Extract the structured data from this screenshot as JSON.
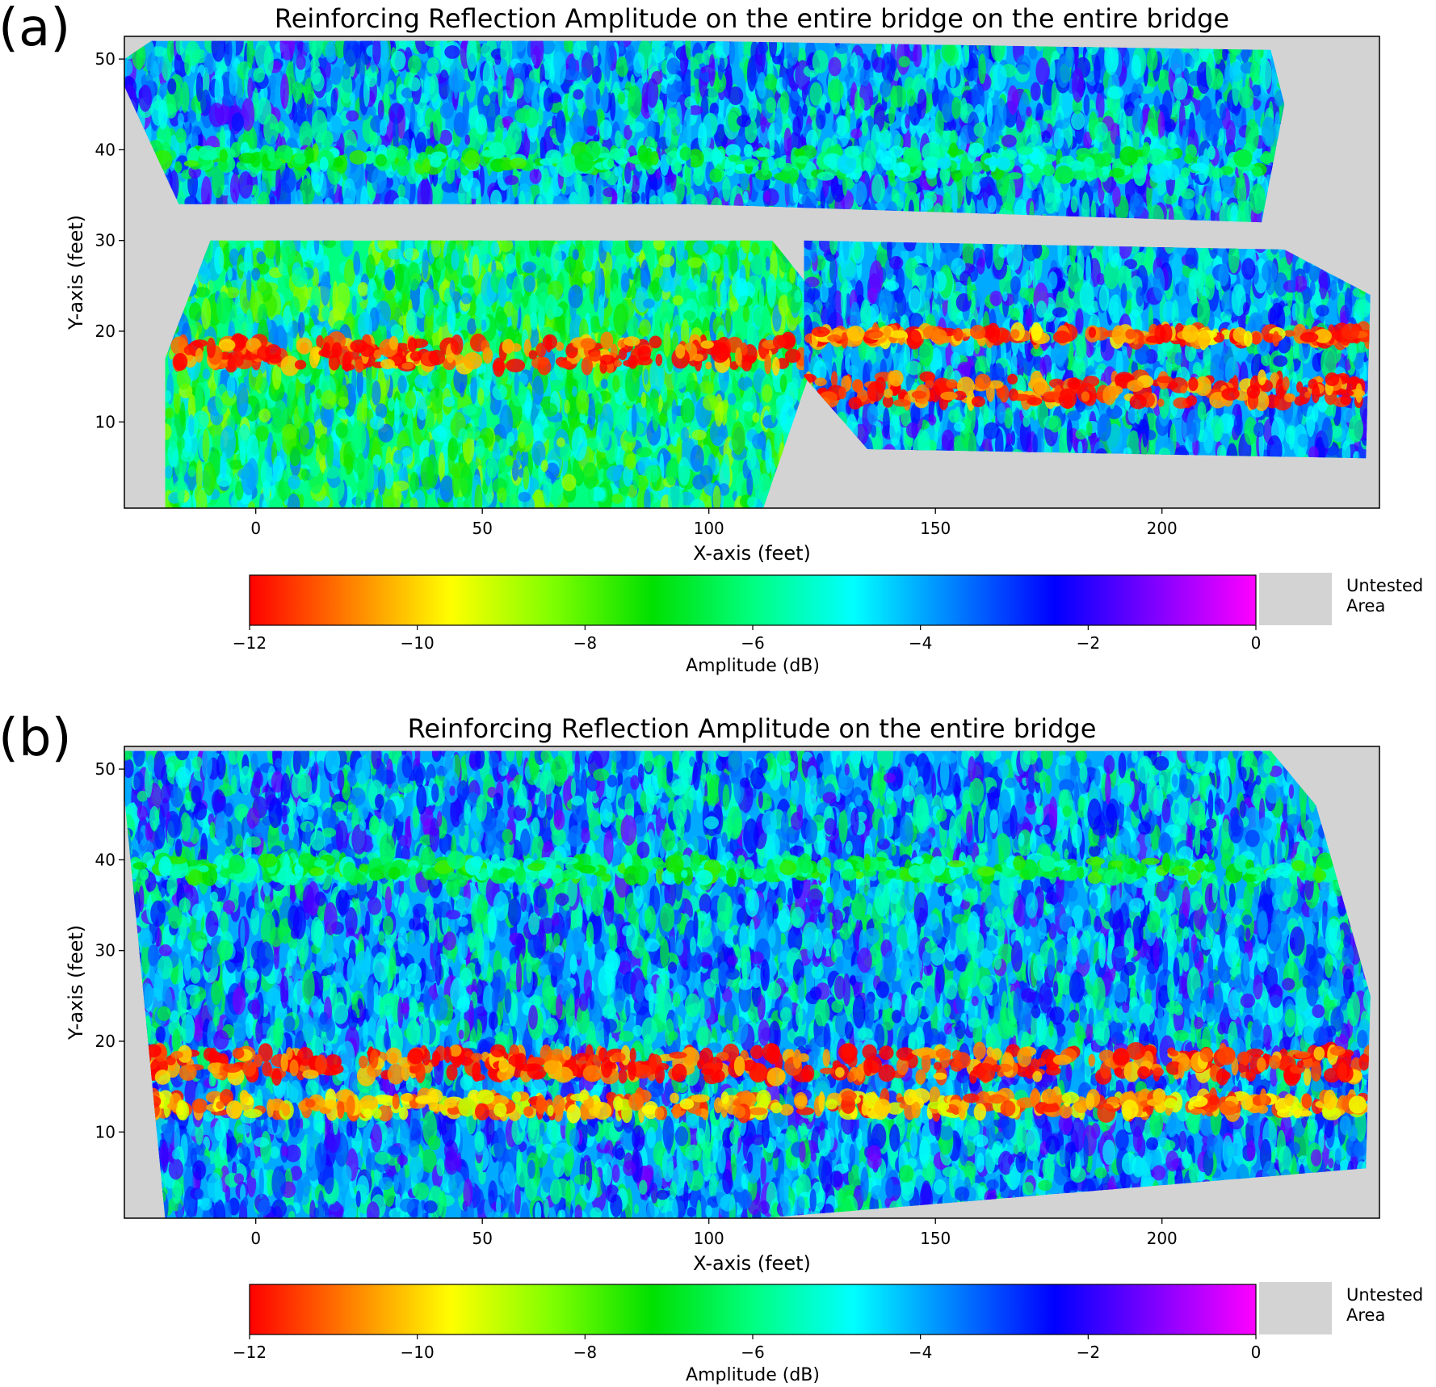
{
  "chart_data": [
    {
      "panel": "(a)",
      "type": "heatmap",
      "title": "Reinforcing Reflection Amplitude on the entire bridge on the entire bridge",
      "xlabel": "X-axis (feet)",
      "ylabel": "Y-axis (feet)",
      "xlim": [
        -29,
        248
      ],
      "ylim": [
        0.5,
        52.5
      ],
      "xticks": [
        0,
        50,
        100,
        150,
        200
      ],
      "yticks": [
        10,
        20,
        30,
        40,
        50
      ],
      "background": "untested",
      "regions": [
        {
          "name": "upper-left span",
          "polygon": [
            [
              -29,
              50
            ],
            [
              -23,
              52
            ],
            [
              96,
              52
            ],
            [
              96,
              34
            ],
            [
              -17,
              34
            ],
            [
              -29,
              47
            ]
          ],
          "value": -4,
          "bands": [
            {
              "y": [
                38,
                40
              ],
              "value": -7
            }
          ]
        },
        {
          "name": "upper-right span",
          "polygon": [
            [
              96,
              52
            ],
            [
              224,
              51
            ],
            [
              227,
              45
            ],
            [
              222,
              32
            ],
            [
              96,
              34
            ]
          ],
          "value": -4,
          "bands": [
            {
              "y": [
                37,
                40
              ],
              "value": -6.5
            }
          ]
        },
        {
          "name": "lower-left span",
          "polygon": [
            [
              -20,
              17
            ],
            [
              -10,
              30
            ],
            [
              114,
              30
            ],
            [
              122,
              25
            ],
            [
              122,
              15
            ],
            [
              112,
              0.5
            ],
            [
              -20,
              0.5
            ]
          ],
          "value": -6,
          "bands": [
            {
              "y": [
                16,
                19
              ],
              "value": -12
            }
          ]
        },
        {
          "name": "lower-right span",
          "polygon": [
            [
              121,
              30
            ],
            [
              227,
              29
            ],
            [
              246,
              24
            ],
            [
              245,
              6
            ],
            [
              135,
              7
            ],
            [
              121,
              15
            ]
          ],
          "value": -4,
          "bands": [
            {
              "y": [
                19,
                20
              ],
              "value": -11.5
            },
            {
              "y": [
                12,
                15
              ],
              "value": -12
            }
          ]
        }
      ]
    },
    {
      "panel": "(b)",
      "type": "heatmap",
      "title": "Reinforcing Reflection Amplitude on the entire bridge",
      "xlabel": "X-axis (feet)",
      "ylabel": "Y-axis (feet)",
      "xlim": [
        -29,
        248
      ],
      "ylim": [
        0.5,
        52.5
      ],
      "xticks": [
        0,
        50,
        100,
        150,
        200
      ],
      "yticks": [
        10,
        20,
        30,
        40,
        50
      ],
      "background": "untested",
      "regions": [
        {
          "name": "entire bridge",
          "polygon": [
            [
              -29,
              52
            ],
            [
              224,
              52
            ],
            [
              234,
              46
            ],
            [
              246,
              25
            ],
            [
              245,
              6
            ],
            [
              112,
              0.5
            ],
            [
              -20,
              0.5
            ],
            [
              -29,
              47
            ]
          ],
          "value": -4,
          "bands": [
            {
              "y": [
                38,
                40
              ],
              "value": -7
            },
            {
              "y": [
                16,
                19
              ],
              "value": -12
            },
            {
              "y": [
                12,
                14
              ],
              "value": -11
            }
          ]
        }
      ]
    }
  ],
  "colorbar": {
    "label": "Amplitude (dB)",
    "range": [
      -12,
      0
    ],
    "ticks": [
      "−12",
      "−10",
      "−8",
      "−6",
      "−4",
      "−2",
      "0"
    ],
    "tick_values": [
      -12,
      -10,
      -8,
      -6,
      -4,
      -2,
      0
    ],
    "colors": [
      "#ff0000",
      "#ff8000",
      "#ffff00",
      "#80ff00",
      "#00e000",
      "#00ff80",
      "#00ffff",
      "#0080ff",
      "#0000ff",
      "#8000ff",
      "#ff00ff"
    ],
    "untested_label_line1": "Untested",
    "untested_label_line2": "Area",
    "untested_color": "#d3d3d3"
  }
}
